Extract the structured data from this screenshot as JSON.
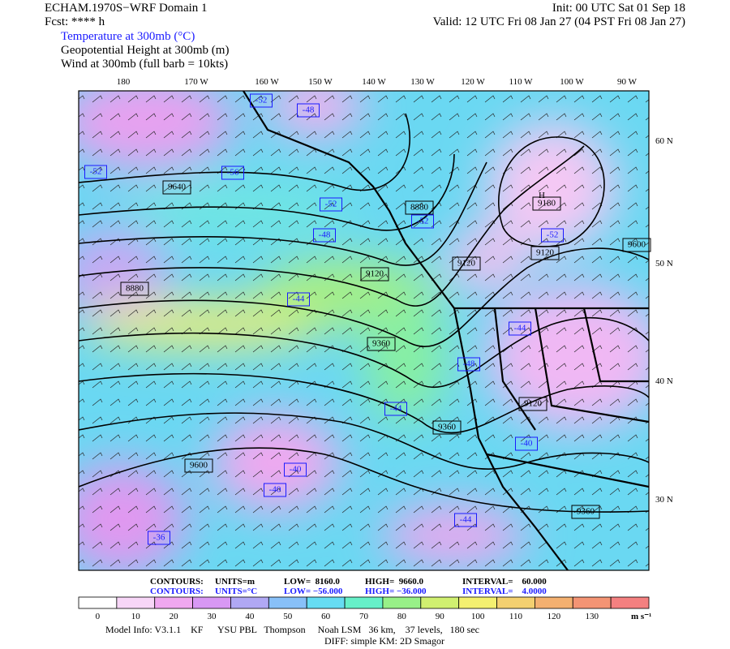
{
  "header": {
    "left": [
      "ECHAM.1970S−WRF Domain 1",
      "Fcst: **** h"
    ],
    "right": [
      "Init: 00 UTC Sat 01 Sep 18",
      "Valid: 12 UTC Fri 08 Jan 27 (04 PST Fri 08 Jan 27)"
    ],
    "fields": [
      "Temperature at 300mb (°C)",
      "Geopotential Height at 300mb (m)",
      "Wind at 300mb (full barb = 10kts)"
    ]
  },
  "map": {
    "longitude_labels": [
      "180",
      "170 W",
      "160 W",
      "150 W",
      "140 W",
      "130 W",
      "120 W",
      "110 W",
      "100 W",
      "90 W"
    ],
    "latitude_labels": [
      "60 N",
      "50 N",
      "40 N",
      "30 N"
    ],
    "high_marker": "H",
    "height_labels": [
      "9640",
      "8880",
      "9600",
      "9120",
      "9360",
      "9360",
      "9120",
      "9360",
      "9180",
      "9120",
      "9120",
      "8880",
      "9600"
    ],
    "temperature_labels": [
      "-52",
      "-52",
      "-48",
      "-56",
      "-52",
      "-48",
      "-52",
      "-52",
      "-44",
      "-48",
      "-44",
      "-40",
      "-40",
      "-36",
      "-44",
      "-40",
      "-44"
    ]
  },
  "footer": {
    "height_contours": [
      "CONTOURS:",
      "UNITS=m",
      "LOW=  8160.0",
      "HIGH=  9660.0",
      "INTERVAL=    60.000"
    ],
    "temperature_contours": [
      "CONTOURS:",
      "UNITS=°C",
      "LOW= −56.000",
      "HIGH= −36.000",
      "INTERVAL=    4.0000"
    ],
    "colorbar": {
      "ticks": [
        0,
        10,
        20,
        30,
        40,
        50,
        60,
        70,
        80,
        90,
        100,
        110,
        120,
        130
      ],
      "unit": "m s⁻¹",
      "colors": [
        "#ffffff",
        "#f7d6f7",
        "#f0a8f0",
        "#d898f4",
        "#b0a8f4",
        "#88c0f8",
        "#66dcf2",
        "#66f0c8",
        "#98f088",
        "#d0f070",
        "#f4f070",
        "#f4d070",
        "#f4b070",
        "#f49474",
        "#f48080"
      ]
    },
    "model_info": [
      "Model Info: V3.1.1    KF      YSU PBL   Thompson     Noah LSM   36 km,    37 levels,   180 sec",
      "DIFF: simple KM: 2D Smagor"
    ]
  }
}
